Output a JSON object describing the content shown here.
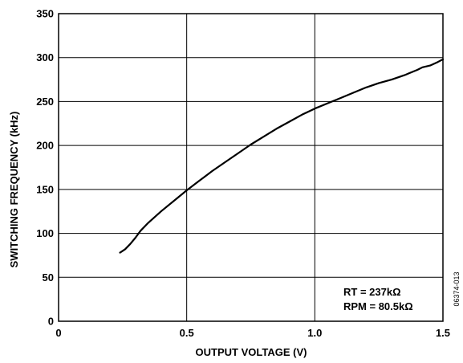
{
  "chart_data": {
    "type": "line",
    "title": "",
    "xlabel": "OUTPUT VOLTAGE (V)",
    "ylabel": "SWITCHING FREQUENCY (kHz)",
    "xlim": [
      0,
      1.5
    ],
    "ylim": [
      0,
      350
    ],
    "xticks": [
      0,
      0.5,
      1.0,
      1.5
    ],
    "xtick_labels": [
      "0",
      "0.5",
      "1.0",
      "1.5"
    ],
    "yticks": [
      0,
      50,
      100,
      150,
      200,
      250,
      300,
      350
    ],
    "ytick_labels": [
      "0",
      "50",
      "100",
      "150",
      "200",
      "250",
      "300",
      "350"
    ],
    "grid": true,
    "series": [
      {
        "x": [
          0.24,
          0.26,
          0.28,
          0.3,
          0.32,
          0.35,
          0.4,
          0.45,
          0.5,
          0.55,
          0.6,
          0.65,
          0.7,
          0.75,
          0.8,
          0.85,
          0.9,
          0.95,
          1.0,
          1.05,
          1.1,
          1.15,
          1.2,
          1.25,
          1.3,
          1.35,
          1.4,
          1.42,
          1.45,
          1.48,
          1.5
        ],
        "y": [
          78,
          82,
          88,
          95,
          103,
          112,
          125,
          137,
          149,
          160,
          171,
          181,
          191,
          201,
          210,
          219,
          227,
          235,
          242,
          248,
          254,
          260,
          266,
          271,
          275,
          280,
          286,
          289,
          291,
          295,
          298
        ]
      }
    ],
    "annotations": [
      "RT = 237kΩ",
      "RPM = 80.5kΩ"
    ],
    "figure_id": "06374-013"
  }
}
